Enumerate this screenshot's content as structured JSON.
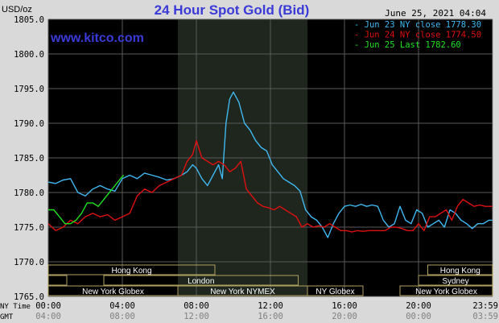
{
  "chart_data": {
    "type": "line",
    "title": "24 Hour Spot Gold (Bid)",
    "website": "www.kitco.com",
    "unit": "USD/oz",
    "date": "June 25, 2021 04:04",
    "ylim": [
      1765.0,
      1805.0
    ],
    "yticks": [
      "1805.0",
      "1800.0",
      "1795.0",
      "1790.0",
      "1785.0",
      "1780.0",
      "1775.0",
      "1770.0",
      "1765.0"
    ],
    "ny_time_label": "NY Time",
    "gmt_label": "GMT",
    "ny_ticks": [
      "00:00",
      "04:00",
      "08:00",
      "12:00",
      "16:00",
      "20:00",
      "23:59"
    ],
    "gmt_ticks": [
      "04:00",
      "08:00",
      "12:00",
      "16:00",
      "20:00",
      "00:00",
      "03:59"
    ],
    "colors": {
      "background": "#000000",
      "grid": "#5a5a5a",
      "nymex_shade": "#1e261e",
      "title": "#3a3ad8",
      "series_blue": "#40b8f0",
      "series_red": "#e01010",
      "series_green": "#20e020",
      "band_border": "#b0a060",
      "band_text": "#ffffff"
    },
    "sessions_row1": [
      {
        "label": "Hong Kong",
        "start": 0.0,
        "end": 9.0
      },
      {
        "label": "Hong Kong",
        "start": 20.5,
        "end": 24.0
      }
    ],
    "sessions_row2": [
      {
        "label": "",
        "start": 0.0,
        "end": 1.0
      },
      {
        "label": "London",
        "start": 3.0,
        "end": 13.5
      },
      {
        "label": "Sydney",
        "start": 20.0,
        "end": 24.0
      }
    ],
    "sessions_row3": [
      {
        "label": "New York Globex",
        "start": 0.0,
        "end": 7.0
      },
      {
        "label": "New York NYMEX",
        "start": 7.0,
        "end": 14.0
      },
      {
        "label": "NY Globex",
        "start": 14.0,
        "end": 17.0
      },
      {
        "label": "New York Globex",
        "start": 19.0,
        "end": 24.0
      }
    ],
    "nymex_hours": [
      7.0,
      14.0
    ],
    "series": [
      {
        "name": "Jun 23 NY close 1778.30",
        "color": "#40b8f0",
        "x": [
          0.0,
          0.4,
          0.8,
          1.2,
          1.6,
          2.0,
          2.4,
          2.8,
          3.2,
          3.6,
          4.0,
          4.4,
          4.8,
          5.2,
          5.6,
          6.0,
          6.4,
          6.8,
          7.2,
          7.5,
          7.8,
          8.0,
          8.3,
          8.6,
          8.9,
          9.2,
          9.4,
          9.6,
          9.8,
          10.0,
          10.3,
          10.6,
          10.9,
          11.2,
          11.5,
          11.8,
          12.1,
          12.4,
          12.7,
          13.0,
          13.3,
          13.6,
          13.9,
          14.2,
          14.5,
          14.8,
          15.1,
          15.4,
          15.7,
          16.0,
          16.3,
          16.6,
          16.9,
          17.2,
          17.5,
          17.8,
          18.1,
          18.4,
          18.7,
          19.0,
          19.3,
          19.6,
          19.9,
          20.2,
          20.5,
          20.8,
          21.1,
          21.4,
          21.7,
          22.0,
          22.3,
          22.6,
          22.9,
          23.2,
          23.5,
          23.8,
          23.99
        ],
        "values": [
          1781.5,
          1781.3,
          1781.8,
          1782.0,
          1780.0,
          1779.5,
          1780.5,
          1781.0,
          1780.5,
          1780.2,
          1782.0,
          1782.5,
          1782.0,
          1782.8,
          1782.5,
          1782.2,
          1781.8,
          1782.0,
          1782.5,
          1783.0,
          1784.0,
          1783.5,
          1782.0,
          1781.0,
          1782.5,
          1784.0,
          1782.0,
          1790.0,
          1793.5,
          1794.5,
          1793.0,
          1790.0,
          1789.0,
          1787.5,
          1786.5,
          1786.0,
          1784.0,
          1783.0,
          1782.0,
          1781.5,
          1781.0,
          1780.2,
          1777.5,
          1776.5,
          1776.0,
          1775.0,
          1773.5,
          1775.5,
          1777.0,
          1778.0,
          1778.2,
          1778.0,
          1778.3,
          1778.0,
          1778.2,
          1778.0,
          1776.0,
          1775.0,
          1775.5,
          1778.0,
          1776.0,
          1775.5,
          1777.5,
          1777.0,
          1775.0,
          1775.5,
          1776.0,
          1775.0,
          1777.5,
          1777.0,
          1776.0,
          1775.5,
          1774.8,
          1775.5,
          1775.5,
          1776.0,
          1776.0
        ]
      },
      {
        "name": "Jun 24 NY close 1774.50",
        "color": "#e01010",
        "x": [
          0.0,
          0.4,
          0.8,
          1.2,
          1.6,
          2.0,
          2.4,
          2.8,
          3.2,
          3.6,
          4.0,
          4.4,
          4.8,
          5.2,
          5.6,
          6.0,
          6.4,
          6.8,
          7.2,
          7.5,
          7.8,
          8.0,
          8.3,
          8.6,
          8.9,
          9.2,
          9.5,
          9.8,
          10.1,
          10.4,
          10.7,
          11.0,
          11.3,
          11.6,
          11.9,
          12.2,
          12.5,
          12.8,
          13.1,
          13.4,
          13.7,
          14.0,
          14.3,
          14.6,
          14.9,
          15.2,
          15.5,
          15.8,
          16.1,
          16.4,
          16.7,
          17.0,
          17.3,
          17.6,
          17.9,
          18.2,
          18.5,
          18.8,
          19.1,
          19.4,
          19.7,
          20.0,
          20.3,
          20.6,
          20.9,
          21.2,
          21.5,
          21.8,
          22.1,
          22.4,
          22.7,
          23.0,
          23.3,
          23.6,
          23.99
        ],
        "values": [
          1775.5,
          1774.5,
          1775.0,
          1776.0,
          1775.5,
          1776.5,
          1777.0,
          1776.5,
          1776.8,
          1776.0,
          1776.5,
          1777.0,
          1779.5,
          1780.5,
          1780.0,
          1781.0,
          1781.5,
          1782.0,
          1782.5,
          1784.5,
          1785.5,
          1787.5,
          1785.0,
          1784.5,
          1784.0,
          1784.5,
          1784.0,
          1783.0,
          1783.5,
          1784.5,
          1780.5,
          1779.5,
          1778.5,
          1778.0,
          1777.8,
          1777.5,
          1778.0,
          1777.5,
          1777.0,
          1776.5,
          1775.0,
          1775.5,
          1775.0,
          1775.2,
          1775.0,
          1775.5,
          1775.0,
          1774.5,
          1774.5,
          1774.3,
          1774.5,
          1774.4,
          1774.5,
          1774.5,
          1774.5,
          1774.5,
          1775.0,
          1775.0,
          1774.8,
          1774.5,
          1774.5,
          1775.5,
          1774.5,
          1776.5,
          1776.5,
          1777.0,
          1777.5,
          1776.0,
          1778.0,
          1779.0,
          1778.5,
          1778.0,
          1778.2,
          1778.0,
          1778.0
        ]
      },
      {
        "name": "Jun 25 Last 1782.60",
        "color": "#20e020",
        "x": [
          0.0,
          0.3,
          0.6,
          0.9,
          1.2,
          1.5,
          1.8,
          2.1,
          2.4,
          2.7,
          3.0,
          3.3,
          3.6,
          3.9,
          4.07
        ],
        "values": [
          1777.5,
          1777.5,
          1776.5,
          1775.5,
          1775.5,
          1776.0,
          1777.0,
          1778.5,
          1778.5,
          1778.0,
          1779.0,
          1780.0,
          1781.0,
          1782.0,
          1782.5
        ]
      }
    ]
  }
}
